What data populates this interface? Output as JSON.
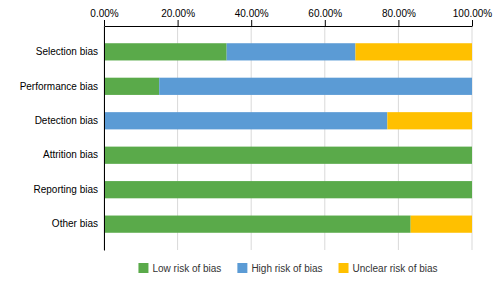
{
  "chart_data": {
    "type": "bar",
    "orientation": "horizontal",
    "stacked": true,
    "categories": [
      "Selection bias",
      "Performance bias",
      "Detection bias",
      "Attrition bias",
      "Reporting bias",
      "Other bias"
    ],
    "series": [
      {
        "name": "Low risk of bias",
        "color": "#5aaa4a",
        "values": [
          33.33,
          15.0,
          0.0,
          100.0,
          100.0,
          83.33
        ]
      },
      {
        "name": "High risk of bias",
        "color": "#5b9bd5",
        "values": [
          35.0,
          85.0,
          77.0,
          0.0,
          0.0,
          0.0
        ]
      },
      {
        "name": "Unclear risk of bias",
        "color": "#ffc000",
        "values": [
          31.67,
          0.0,
          23.0,
          0.0,
          0.0,
          16.67
        ]
      }
    ],
    "xlim": [
      0,
      100
    ],
    "xticks": [
      {
        "value": 0,
        "label": "0.00%"
      },
      {
        "value": 20,
        "label": "20.00%"
      },
      {
        "value": 40,
        "label": "40.00%"
      },
      {
        "value": 60,
        "label": "60.00%"
      },
      {
        "value": 80,
        "label": "80.00%"
      },
      {
        "value": 100,
        "label": "100.00%"
      }
    ],
    "grid": true,
    "legend": "bottom"
  }
}
